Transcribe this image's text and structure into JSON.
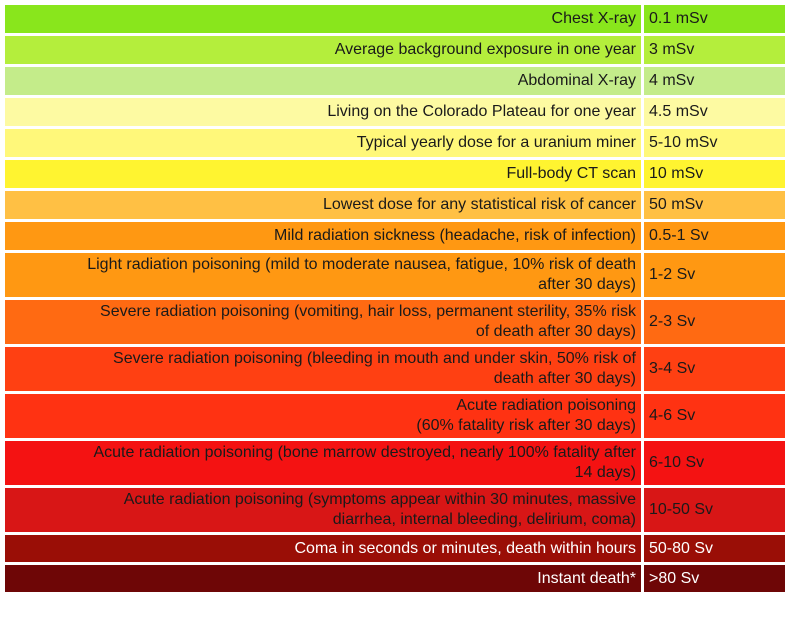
{
  "rows": [
    {
      "effect": "Chest X-ray",
      "dose": "0.1 mSv",
      "color": "#89e61c",
      "text_color": "dark"
    },
    {
      "effect": "Average background exposure in one year",
      "dose": "3 mSv",
      "color": "#b4ee3c",
      "text_color": "dark"
    },
    {
      "effect": "Abdominal X-ray",
      "dose": "4 mSv",
      "color": "#c4ec8a",
      "text_color": "dark"
    },
    {
      "effect": "Living on the Colorado Plateau for one year",
      "dose": "4.5 mSv",
      "color": "#fdfaa2",
      "text_color": "dark"
    },
    {
      "effect": "Typical yearly dose for a uranium miner",
      "dose": "5-10 mSv",
      "color": "#fff87a",
      "text_color": "dark"
    },
    {
      "effect": "Full-body CT scan",
      "dose": "10 mSv",
      "color": "#fff430",
      "text_color": "dark"
    },
    {
      "effect": "Lowest dose for any statistical risk of cancer",
      "dose": "50 mSv",
      "color": "#ffc044",
      "text_color": "dark"
    },
    {
      "effect": "Mild radiation sickness (headache, risk of infection)",
      "dose": "0.5-1 Sv",
      "color": "#ff9812",
      "text_color": "dark"
    },
    {
      "effect": "Light radiation poisoning (mild to moderate nausea, fatigue, 10% risk of death\nafter 30 days)",
      "dose": "1-2 Sv",
      "color": "#ff9812",
      "text_color": "dark"
    },
    {
      "effect": "Severe radiation poisoning (vomiting, hair loss, permanent sterility, 35% risk\nof death after 30 days)",
      "dose": "2-3 Sv",
      "color": "#ff6a12",
      "text_color": "dark"
    },
    {
      "effect": "Severe radiation poisoning (bleeding in mouth and under skin, 50% risk of\ndeath after 30 days)",
      "dose": "3-4 Sv",
      "color": "#ff4012",
      "text_color": "dark"
    },
    {
      "effect": "Acute radiation poisoning\n(60% fatality risk after 30 days)",
      "dose": "4-6 Sv",
      "color": "#ff3212",
      "text_color": "dark"
    },
    {
      "effect": "Acute radiation poisoning (bone marrow destroyed, nearly 100% fatality after\n14 days)",
      "dose": "6-10 Sv",
      "color": "#f41212",
      "text_color": "dark"
    },
    {
      "effect": "Acute radiation poisoning (symptoms appear within 30 minutes, massive\ndiarrhea, internal bleeding, delirium, coma)",
      "dose": "10-50 Sv",
      "color": "#d81616",
      "text_color": "dark"
    },
    {
      "effect": "Coma in seconds or minutes, death within hours",
      "dose": "50-80 Sv",
      "color": "#9a0e06",
      "text_color": "light"
    },
    {
      "effect": "Instant death*",
      "dose": ">80 Sv",
      "color": "#6e0606",
      "text_color": "light"
    }
  ]
}
